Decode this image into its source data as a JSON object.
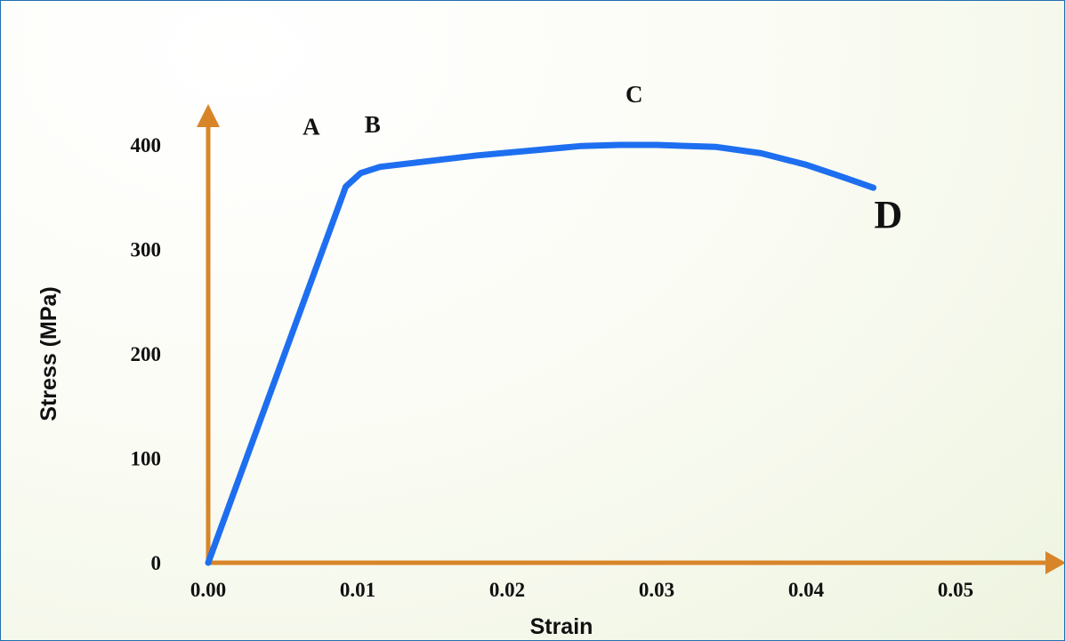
{
  "chart_data": {
    "type": "line",
    "xlabel": "Strain",
    "ylabel": "Stress (MPa)",
    "xlim": [
      0,
      0.055
    ],
    "ylim": [
      0,
      440
    ],
    "x_ticks": [
      "0.00",
      "0.01",
      "0.02",
      "0.03",
      "0.04",
      "0.05"
    ],
    "y_ticks": [
      "0",
      "100",
      "200",
      "300",
      "400"
    ],
    "x_tick_values": [
      0,
      0.01,
      0.02,
      0.03,
      0.04,
      0.05
    ],
    "y_tick_values": [
      0,
      100,
      200,
      300,
      400
    ],
    "grid": false,
    "series": [
      {
        "color": "#1e6ff0",
        "x": [
          0,
          0.0092,
          0.0102,
          0.0115,
          0.018,
          0.025,
          0.0275,
          0.03,
          0.034,
          0.037,
          0.04,
          0.0425,
          0.0445
        ],
        "y": [
          0,
          360,
          373,
          379,
          390,
          399,
          400,
          400,
          398,
          392,
          381,
          369,
          359
        ]
      }
    ],
    "annotations": [
      {
        "text": "A",
        "x": 0.0069,
        "y": 410,
        "color": "#111111"
      },
      {
        "text": "B",
        "x": 0.011,
        "y": 412,
        "color": "#111111"
      },
      {
        "text": "C",
        "x": 0.0285,
        "y": 441,
        "color": "#111111"
      },
      {
        "text": "D",
        "x": 0.0455,
        "y": 321,
        "color": "#ee1111"
      }
    ],
    "axis_color": "#d8852a"
  }
}
